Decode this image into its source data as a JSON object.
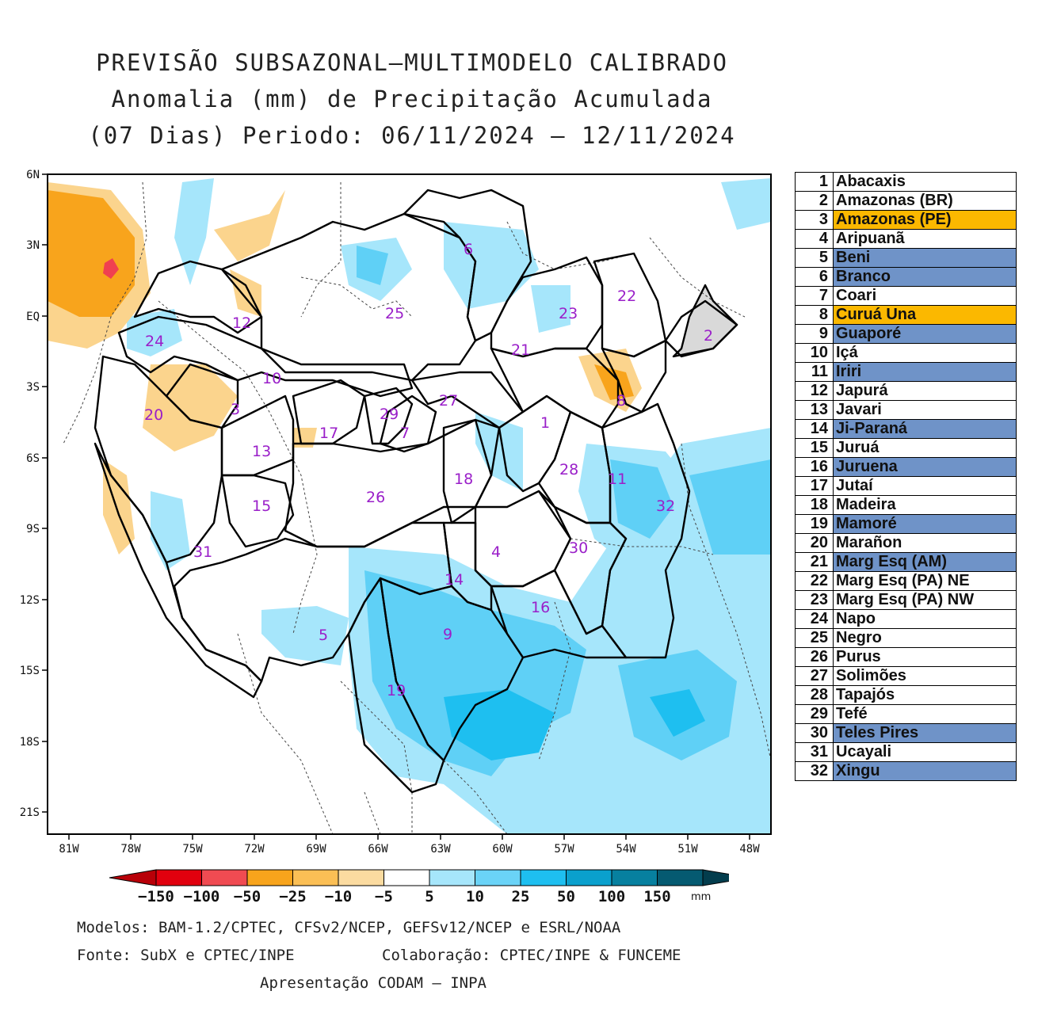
{
  "title": {
    "line1": "PREVISÃO SUBSAZONAL—MULTIMODELO CALIBRADO",
    "line2": "Anomalia (mm) de Precipitação Acumulada",
    "line3": "(07 Dias) Periodo: 06/11/2024 — 12/11/2024"
  },
  "axes": {
    "lat_labels": [
      "6N",
      "3N",
      "EQ",
      "3S",
      "6S",
      "9S",
      "12S",
      "15S",
      "18S",
      "21S"
    ],
    "lon_labels": [
      "81W",
      "78W",
      "75W",
      "72W",
      "69W",
      "66W",
      "63W",
      "60W",
      "57W",
      "54W",
      "51W",
      "48W"
    ]
  },
  "colors": {
    "light_blue": "#a6e6fb",
    "mid_blue": "#5fd0f6",
    "deep_blue": "#1ebff0",
    "light_orange": "#fbd48d",
    "orange": "#f8a41c",
    "red": "#f04050",
    "legend_blue": "#6f93c8",
    "legend_orange": "#fbb800"
  },
  "basin_labels": [
    {
      "n": "1"
    },
    {
      "n": "2"
    },
    {
      "n": "3"
    },
    {
      "n": "4"
    },
    {
      "n": "5"
    },
    {
      "n": "6"
    },
    {
      "n": "7"
    },
    {
      "n": "8"
    },
    {
      "n": "9"
    },
    {
      "n": "10"
    },
    {
      "n": "11"
    },
    {
      "n": "12"
    },
    {
      "n": "13"
    },
    {
      "n": "14"
    },
    {
      "n": "15"
    },
    {
      "n": "16"
    },
    {
      "n": "17"
    },
    {
      "n": "18"
    },
    {
      "n": "19"
    },
    {
      "n": "20"
    },
    {
      "n": "21"
    },
    {
      "n": "22"
    },
    {
      "n": "23"
    },
    {
      "n": "24"
    },
    {
      "n": "25"
    },
    {
      "n": "26"
    },
    {
      "n": "27"
    },
    {
      "n": "28"
    },
    {
      "n": "29"
    },
    {
      "n": "30"
    },
    {
      "n": "31"
    },
    {
      "n": "32"
    }
  ],
  "legend": [
    {
      "n": "1",
      "name": "Abacaxis",
      "hl": "none"
    },
    {
      "n": "2",
      "name": "Amazonas (BR)",
      "hl": "none"
    },
    {
      "n": "3",
      "name": "Amazonas (PE)",
      "hl": "orange"
    },
    {
      "n": "4",
      "name": "Aripuanã",
      "hl": "none"
    },
    {
      "n": "5",
      "name": "Beni",
      "hl": "blue"
    },
    {
      "n": "6",
      "name": "Branco",
      "hl": "blue"
    },
    {
      "n": "7",
      "name": "Coari",
      "hl": "none"
    },
    {
      "n": "8",
      "name": "Curuá Una",
      "hl": "orange"
    },
    {
      "n": "9",
      "name": "Guaporé",
      "hl": "blue"
    },
    {
      "n": "10",
      "name": "Içá",
      "hl": "none"
    },
    {
      "n": "11",
      "name": "Iriri",
      "hl": "blue"
    },
    {
      "n": "12",
      "name": "Japurá",
      "hl": "none"
    },
    {
      "n": "13",
      "name": "Javari",
      "hl": "none"
    },
    {
      "n": "14",
      "name": "Ji-Paraná",
      "hl": "blue"
    },
    {
      "n": "15",
      "name": "Juruá",
      "hl": "none"
    },
    {
      "n": "16",
      "name": "Juruena",
      "hl": "blue"
    },
    {
      "n": "17",
      "name": "Jutaí",
      "hl": "none"
    },
    {
      "n": "18",
      "name": "Madeira",
      "hl": "none"
    },
    {
      "n": "19",
      "name": "Mamoré",
      "hl": "blue"
    },
    {
      "n": "20",
      "name": "Marañon",
      "hl": "none"
    },
    {
      "n": "21",
      "name": "Marg Esq (AM)",
      "hl": "blue"
    },
    {
      "n": "22",
      "name": "Marg Esq (PA) NE",
      "hl": "none"
    },
    {
      "n": "23",
      "name": "Marg Esq (PA) NW",
      "hl": "none"
    },
    {
      "n": "24",
      "name": "Napo",
      "hl": "none"
    },
    {
      "n": "25",
      "name": "Negro",
      "hl": "none"
    },
    {
      "n": "26",
      "name": "Purus",
      "hl": "none"
    },
    {
      "n": "27",
      "name": "Solimões",
      "hl": "none"
    },
    {
      "n": "28",
      "name": "Tapajós",
      "hl": "none"
    },
    {
      "n": "29",
      "name": "Tefé",
      "hl": "none"
    },
    {
      "n": "30",
      "name": "Teles Pires",
      "hl": "blue"
    },
    {
      "n": "31",
      "name": "Ucayali",
      "hl": "none"
    },
    {
      "n": "32",
      "name": "Xingu",
      "hl": "blue"
    }
  ],
  "colorbar": {
    "ticks": [
      "−150",
      "−100",
      "−50",
      "−25",
      "−10",
      "−5",
      "5",
      "10",
      "25",
      "50",
      "100",
      "150"
    ],
    "unit": "mm",
    "colors": [
      "#e1000e",
      "#f04b52",
      "#f8a41c",
      "#fbbf55",
      "#fbdba0",
      "#ffffff",
      "#a6e6fb",
      "#6ad3f7",
      "#1ebff0",
      "#0aa0cd",
      "#07809f",
      "#055a71"
    ],
    "end_low": "#b80008",
    "end_high": "#033d4d"
  },
  "footer": {
    "models": "Modelos: BAM-1.2/CPTEC, CFSv2/NCEP, GEFSv12/NCEP e ESRL/NOAA",
    "source": "Fonte: SubX e CPTEC/INPE",
    "collab": "Colaboração: CPTEC/INPE & FUNCEME",
    "presentation": "Apresentação CODAM — INPA"
  }
}
